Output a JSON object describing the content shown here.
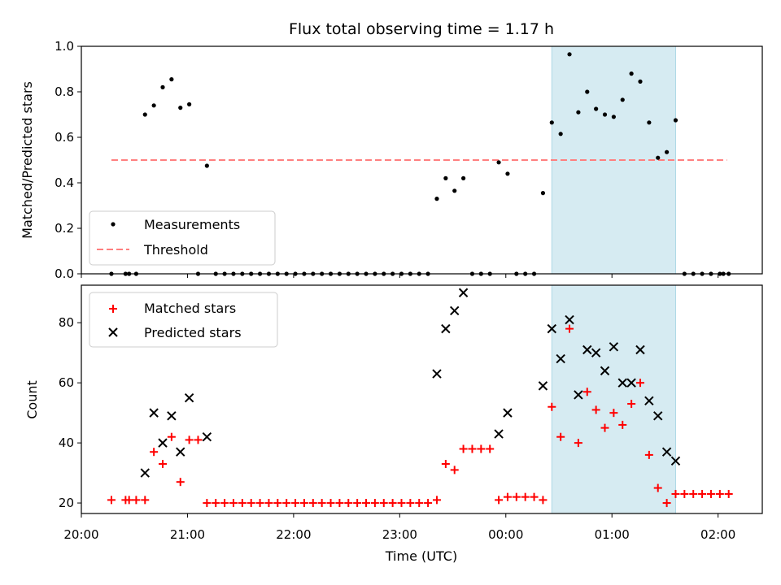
{
  "chart_data": {
    "title": "Flux total observing time = 1.17 h",
    "xlabel": "Time (UTC)",
    "xlim": [
      "20:00",
      "02:25"
    ],
    "x_ticks": [
      "20:00",
      "21:00",
      "22:00",
      "23:00",
      "00:00",
      "01:00",
      "02:00"
    ],
    "highlight_span": [
      "00:26",
      "01:36"
    ],
    "highlight_color": "#add8e6",
    "top": {
      "type": "scatter",
      "ylabel": "Matched/Predicted stars",
      "ylim": [
        0.0,
        1.0
      ],
      "y_ticks": [
        "0.0",
        "0.2",
        "0.4",
        "0.6",
        "0.8",
        "1.0"
      ],
      "threshold": {
        "name": "Threshold",
        "value": 0.5,
        "x_range": [
          "20:17",
          "02:05"
        ],
        "color": "#ff7f7f"
      },
      "legend": {
        "position": "lower-left",
        "measurements_label": "Measurements",
        "threshold_label": "Threshold"
      },
      "series": [
        {
          "name": "Measurements",
          "color": "#000000",
          "points": [
            [
              "20:17",
              0.0
            ],
            [
              "20:25",
              0.0
            ],
            [
              "20:27",
              0.0
            ],
            [
              "20:31",
              0.0
            ],
            [
              "20:36",
              0.7
            ],
            [
              "20:41",
              0.74
            ],
            [
              "20:46",
              0.82
            ],
            [
              "20:51",
              0.855
            ],
            [
              "20:56",
              0.73
            ],
            [
              "21:01",
              0.745
            ],
            [
              "21:06",
              0.0
            ],
            [
              "21:11",
              0.475
            ],
            [
              "21:16",
              0.0
            ],
            [
              "21:21",
              0.0
            ],
            [
              "21:26",
              0.0
            ],
            [
              "21:31",
              0.0
            ],
            [
              "21:36",
              0.0
            ],
            [
              "21:41",
              0.0
            ],
            [
              "21:46",
              0.0
            ],
            [
              "21:51",
              0.0
            ],
            [
              "21:56",
              0.0
            ],
            [
              "22:01",
              0.0
            ],
            [
              "22:06",
              0.0
            ],
            [
              "22:11",
              0.0
            ],
            [
              "22:16",
              0.0
            ],
            [
              "22:21",
              0.0
            ],
            [
              "22:26",
              0.0
            ],
            [
              "22:31",
              0.0
            ],
            [
              "22:36",
              0.0
            ],
            [
              "22:41",
              0.0
            ],
            [
              "22:46",
              0.0
            ],
            [
              "22:51",
              0.0
            ],
            [
              "22:56",
              0.0
            ],
            [
              "23:01",
              0.0
            ],
            [
              "23:06",
              0.0
            ],
            [
              "23:11",
              0.0
            ],
            [
              "23:16",
              0.0
            ],
            [
              "23:21",
              0.33
            ],
            [
              "23:26",
              0.42
            ],
            [
              "23:31",
              0.365
            ],
            [
              "23:36",
              0.42
            ],
            [
              "23:41",
              0.0
            ],
            [
              "23:46",
              0.0
            ],
            [
              "23:51",
              0.0
            ],
            [
              "23:56",
              0.49
            ],
            [
              "00:01",
              0.44
            ],
            [
              "00:06",
              0.0
            ],
            [
              "00:11",
              0.0
            ],
            [
              "00:16",
              0.0
            ],
            [
              "00:21",
              0.355
            ],
            [
              "00:26",
              0.665
            ],
            [
              "00:31",
              0.615
            ],
            [
              "00:36",
              0.965
            ],
            [
              "00:41",
              0.71
            ],
            [
              "00:46",
              0.8
            ],
            [
              "00:51",
              0.725
            ],
            [
              "00:56",
              0.7
            ],
            [
              "01:01",
              0.69
            ],
            [
              "01:06",
              0.765
            ],
            [
              "01:11",
              0.88
            ],
            [
              "01:16",
              0.845
            ],
            [
              "01:21",
              0.665
            ],
            [
              "01:26",
              0.51
            ],
            [
              "01:31",
              0.535
            ],
            [
              "01:36",
              0.675
            ],
            [
              "01:41",
              0.0
            ],
            [
              "01:46",
              0.0
            ],
            [
              "01:51",
              0.0
            ],
            [
              "01:56",
              0.0
            ],
            [
              "02:01",
              0.0
            ],
            [
              "02:03",
              0.0
            ],
            [
              "02:06",
              0.0
            ]
          ]
        }
      ]
    },
    "bottom": {
      "type": "scatter",
      "ylabel": "Count",
      "ylim": [
        16.5,
        92.5
      ],
      "y_ticks": [
        "20",
        "40",
        "60",
        "80"
      ],
      "legend": {
        "position": "top-left",
        "matched_label": "Matched stars",
        "predicted_label": "Predicted stars"
      },
      "series": [
        {
          "name": "Matched stars",
          "marker": "+",
          "color": "#ff0000",
          "points": [
            [
              "20:17",
              21
            ],
            [
              "20:25",
              21
            ],
            [
              "20:27",
              21
            ],
            [
              "20:31",
              21
            ],
            [
              "20:36",
              21
            ],
            [
              "20:41",
              37
            ],
            [
              "20:46",
              33
            ],
            [
              "20:51",
              42
            ],
            [
              "20:56",
              27
            ],
            [
              "21:01",
              41
            ],
            [
              "21:06",
              41
            ],
            [
              "21:11",
              20
            ],
            [
              "21:16",
              20
            ],
            [
              "21:21",
              20
            ],
            [
              "21:26",
              20
            ],
            [
              "21:31",
              20
            ],
            [
              "21:36",
              20
            ],
            [
              "21:41",
              20
            ],
            [
              "21:46",
              20
            ],
            [
              "21:51",
              20
            ],
            [
              "21:56",
              20
            ],
            [
              "22:01",
              20
            ],
            [
              "22:06",
              20
            ],
            [
              "22:11",
              20
            ],
            [
              "22:16",
              20
            ],
            [
              "22:21",
              20
            ],
            [
              "22:26",
              20
            ],
            [
              "22:31",
              20
            ],
            [
              "22:36",
              20
            ],
            [
              "22:41",
              20
            ],
            [
              "22:46",
              20
            ],
            [
              "22:51",
              20
            ],
            [
              "22:56",
              20
            ],
            [
              "23:01",
              20
            ],
            [
              "23:06",
              20
            ],
            [
              "23:11",
              20
            ],
            [
              "23:16",
              20
            ],
            [
              "23:21",
              21
            ],
            [
              "23:26",
              33
            ],
            [
              "23:31",
              31
            ],
            [
              "23:36",
              38
            ],
            [
              "23:41",
              38
            ],
            [
              "23:46",
              38
            ],
            [
              "23:51",
              38
            ],
            [
              "23:56",
              21
            ],
            [
              "00:01",
              22
            ],
            [
              "00:06",
              22
            ],
            [
              "00:11",
              22
            ],
            [
              "00:16",
              22
            ],
            [
              "00:21",
              21
            ],
            [
              "00:26",
              52
            ],
            [
              "00:31",
              42
            ],
            [
              "00:36",
              78
            ],
            [
              "00:41",
              40
            ],
            [
              "00:46",
              57
            ],
            [
              "00:51",
              51
            ],
            [
              "00:56",
              45
            ],
            [
              "01:01",
              50
            ],
            [
              "01:06",
              46
            ],
            [
              "01:11",
              53
            ],
            [
              "01:16",
              60
            ],
            [
              "01:21",
              36
            ],
            [
              "01:26",
              25
            ],
            [
              "01:31",
              20
            ],
            [
              "01:36",
              23
            ],
            [
              "01:41",
              23
            ],
            [
              "01:46",
              23
            ],
            [
              "01:51",
              23
            ],
            [
              "01:56",
              23
            ],
            [
              "02:01",
              23
            ],
            [
              "02:06",
              23
            ]
          ]
        },
        {
          "name": "Predicted stars",
          "marker": "x",
          "color": "#000000",
          "points": [
            [
              "20:36",
              30
            ],
            [
              "20:41",
              50
            ],
            [
              "20:46",
              40
            ],
            [
              "20:51",
              49
            ],
            [
              "20:56",
              37
            ],
            [
              "21:01",
              55
            ],
            [
              "21:11",
              42
            ],
            [
              "23:21",
              63
            ],
            [
              "23:26",
              78
            ],
            [
              "23:31",
              84
            ],
            [
              "23:36",
              90
            ],
            [
              "23:56",
              43
            ],
            [
              "00:01",
              50
            ],
            [
              "00:21",
              59
            ],
            [
              "00:26",
              78
            ],
            [
              "00:31",
              68
            ],
            [
              "00:36",
              81
            ],
            [
              "00:41",
              56
            ],
            [
              "00:46",
              71
            ],
            [
              "00:51",
              70
            ],
            [
              "00:56",
              64
            ],
            [
              "01:01",
              72
            ],
            [
              "01:06",
              60
            ],
            [
              "01:11",
              60
            ],
            [
              "01:16",
              71
            ],
            [
              "01:21",
              54
            ],
            [
              "01:26",
              49
            ],
            [
              "01:31",
              37
            ],
            [
              "01:36",
              34
            ]
          ]
        }
      ]
    }
  }
}
